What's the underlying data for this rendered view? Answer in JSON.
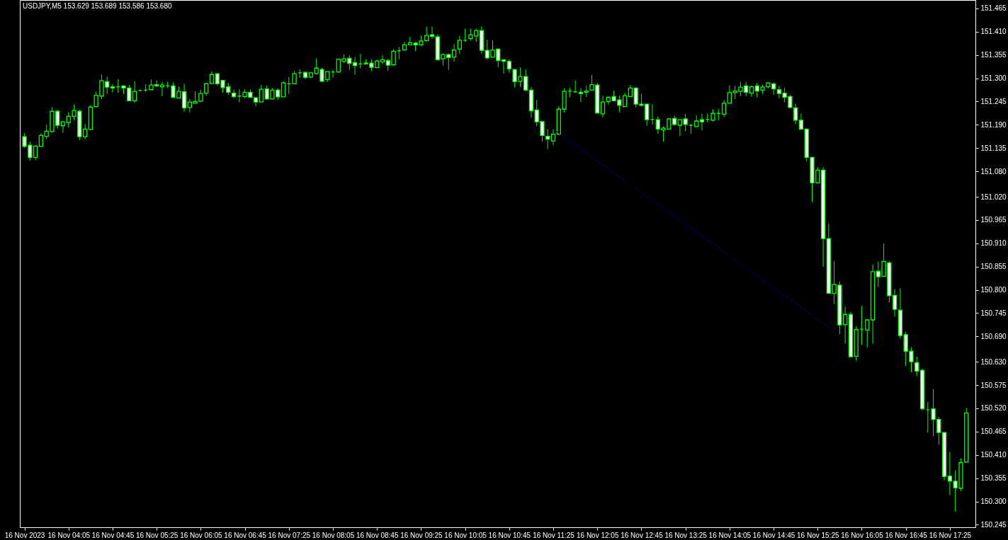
{
  "chart_data": {
    "type": "candlestick",
    "title": "USDJPY,M5  153.629 153.689 153.586 153.680",
    "color": "#00ff00",
    "x": [
      "2023-11-16T03:25",
      "2023-11-16T03:30",
      "2023-11-16T03:35",
      "2023-11-16T03:40",
      "2023-11-16T03:45",
      "2023-11-16T03:50",
      "2023-11-16T03:55",
      "2023-11-16T04:00",
      "2023-11-16T04:05",
      "2023-11-16T04:10",
      "2023-11-16T04:15",
      "2023-11-16T04:20",
      "2023-11-16T04:25",
      "2023-11-16T04:30",
      "2023-11-16T04:35",
      "2023-11-16T04:40",
      "2023-11-16T04:45",
      "2023-11-16T04:50",
      "2023-11-16T04:55",
      "2023-11-16T05:00",
      "2023-11-16T05:05",
      "2023-11-16T05:10",
      "2023-11-16T05:15",
      "2023-11-16T05:20",
      "2023-11-16T05:25",
      "2023-11-16T05:30",
      "2023-11-16T05:35",
      "2023-11-16T05:40",
      "2023-11-16T05:45",
      "2023-11-16T05:50",
      "2023-11-16T05:55",
      "2023-11-16T06:00",
      "2023-11-16T06:05",
      "2023-11-16T06:10",
      "2023-11-16T06:15",
      "2023-11-16T06:20",
      "2023-11-16T06:25",
      "2023-11-16T06:30",
      "2023-11-16T06:35",
      "2023-11-16T06:40",
      "2023-11-16T06:45",
      "2023-11-16T06:50",
      "2023-11-16T06:55",
      "2023-11-16T07:00",
      "2023-11-16T07:05",
      "2023-11-16T07:10",
      "2023-11-16T07:15",
      "2023-11-16T07:20",
      "2023-11-16T07:25",
      "2023-11-16T07:30",
      "2023-11-16T07:35",
      "2023-11-16T07:40",
      "2023-11-16T07:45",
      "2023-11-16T07:50",
      "2023-11-16T07:55",
      "2023-11-16T08:00",
      "2023-11-16T08:05",
      "2023-11-16T08:10",
      "2023-11-16T08:15",
      "2023-11-16T08:20",
      "2023-11-16T08:25",
      "2023-11-16T08:30",
      "2023-11-16T08:35",
      "2023-11-16T08:40",
      "2023-11-16T08:45",
      "2023-11-16T08:50",
      "2023-11-16T08:55",
      "2023-11-16T09:00",
      "2023-11-16T09:05",
      "2023-11-16T09:10",
      "2023-11-16T09:15",
      "2023-11-16T09:20",
      "2023-11-16T09:25",
      "2023-11-16T09:30",
      "2023-11-16T09:35",
      "2023-11-16T09:40",
      "2023-11-16T09:45",
      "2023-11-16T09:50",
      "2023-11-16T09:55",
      "2023-11-16T10:00",
      "2023-11-16T10:05",
      "2023-11-16T10:10",
      "2023-11-16T10:15",
      "2023-11-16T10:20",
      "2023-11-16T10:25",
      "2023-11-16T10:30",
      "2023-11-16T10:35",
      "2023-11-16T10:40",
      "2023-11-16T10:45",
      "2023-11-16T10:50",
      "2023-11-16T10:55",
      "2023-11-16T11:00",
      "2023-11-16T11:05",
      "2023-11-16T11:10",
      "2023-11-16T11:15",
      "2023-11-16T11:20",
      "2023-11-16T11:25",
      "2023-11-16T11:30",
      "2023-11-16T11:35",
      "2023-11-16T11:40",
      "2023-11-16T11:45",
      "2023-11-16T11:50",
      "2023-11-16T11:55",
      "2023-11-16T12:00",
      "2023-11-16T12:05",
      "2023-11-16T12:10",
      "2023-11-16T12:15",
      "2023-11-16T12:20",
      "2023-11-16T12:25",
      "2023-11-16T12:30",
      "2023-11-16T12:35",
      "2023-11-16T12:40",
      "2023-11-16T12:45",
      "2023-11-16T12:50",
      "2023-11-16T12:55",
      "2023-11-16T13:00",
      "2023-11-16T13:05",
      "2023-11-16T13:10",
      "2023-11-16T13:15",
      "2023-11-16T13:20",
      "2023-11-16T13:25",
      "2023-11-16T13:30",
      "2023-11-16T13:35",
      "2023-11-16T13:40",
      "2023-11-16T13:45",
      "2023-11-16T13:50",
      "2023-11-16T13:55",
      "2023-11-16T14:00",
      "2023-11-16T14:05",
      "2023-11-16T14:10",
      "2023-11-16T14:15",
      "2023-11-16T14:20",
      "2023-11-16T14:25",
      "2023-11-16T14:30",
      "2023-11-16T14:35",
      "2023-11-16T14:40",
      "2023-11-16T14:45",
      "2023-11-16T14:50",
      "2023-11-16T14:55",
      "2023-11-16T15:00",
      "2023-11-16T15:05",
      "2023-11-16T15:10",
      "2023-11-16T15:15",
      "2023-11-16T15:20",
      "2023-11-16T15:25",
      "2023-11-16T15:30",
      "2023-11-16T15:35",
      "2023-11-16T15:40",
      "2023-11-16T15:45",
      "2023-11-16T15:50",
      "2023-11-16T15:55",
      "2023-11-16T16:00",
      "2023-11-16T16:05",
      "2023-11-16T16:10",
      "2023-11-16T16:15",
      "2023-11-16T16:20",
      "2023-11-16T16:25",
      "2023-11-16T16:30",
      "2023-11-16T16:35",
      "2023-11-16T16:40",
      "2023-11-16T16:45",
      "2023-11-16T16:50",
      "2023-11-16T16:55",
      "2023-11-16T17:00",
      "2023-11-16T17:05",
      "2023-11-16T17:10",
      "2023-11-16T17:15",
      "2023-11-16T17:20",
      "2023-11-16T17:25",
      "2023-11-16T17:30",
      "2023-11-16T17:35",
      "2023-11-16T17:40"
    ],
    "ohlc": [
      [
        151.162,
        151.17,
        151.136,
        151.139
      ],
      [
        151.142,
        151.15,
        151.106,
        151.113
      ],
      [
        151.113,
        151.142,
        151.106,
        151.14
      ],
      [
        151.139,
        151.17,
        151.138,
        151.165
      ],
      [
        151.163,
        151.191,
        151.156,
        151.175
      ],
      [
        151.174,
        151.232,
        151.171,
        151.222
      ],
      [
        151.222,
        151.226,
        151.181,
        151.189
      ],
      [
        151.188,
        151.199,
        151.171,
        151.197
      ],
      [
        151.195,
        151.22,
        151.184,
        151.21
      ],
      [
        151.21,
        151.238,
        151.201,
        151.224
      ],
      [
        151.222,
        151.226,
        151.154,
        151.162
      ],
      [
        151.162,
        151.192,
        151.156,
        151.18
      ],
      [
        151.179,
        151.237,
        151.177,
        151.232
      ],
      [
        151.233,
        151.268,
        151.231,
        151.26
      ],
      [
        151.258,
        151.309,
        151.251,
        151.294
      ],
      [
        151.292,
        151.304,
        151.263,
        151.279
      ],
      [
        151.28,
        151.287,
        151.266,
        151.277
      ],
      [
        151.28,
        151.298,
        151.266,
        151.28
      ],
      [
        151.282,
        151.283,
        151.263,
        151.277
      ],
      [
        151.277,
        151.284,
        151.246,
        151.247
      ],
      [
        151.247,
        151.293,
        151.242,
        151.269
      ],
      [
        151.271,
        151.274,
        151.269,
        151.271
      ],
      [
        151.272,
        151.286,
        151.268,
        151.272
      ],
      [
        151.273,
        151.297,
        151.272,
        151.284
      ],
      [
        151.285,
        151.295,
        151.279,
        151.282
      ],
      [
        151.28,
        151.291,
        151.258,
        151.284
      ],
      [
        151.282,
        151.292,
        151.277,
        151.282
      ],
      [
        151.282,
        151.29,
        151.253,
        151.255
      ],
      [
        151.253,
        151.281,
        151.253,
        151.269
      ],
      [
        151.268,
        151.287,
        151.221,
        151.23
      ],
      [
        151.231,
        151.251,
        151.22,
        151.244
      ],
      [
        151.241,
        151.269,
        151.241,
        151.245
      ],
      [
        151.246,
        151.273,
        151.243,
        151.264
      ],
      [
        151.265,
        151.289,
        151.259,
        151.287
      ],
      [
        151.288,
        151.316,
        151.286,
        151.309
      ],
      [
        151.311,
        151.312,
        151.283,
        151.287
      ],
      [
        151.295,
        151.295,
        151.266,
        151.278
      ],
      [
        151.28,
        151.289,
        151.261,
        151.267
      ],
      [
        151.265,
        151.273,
        151.253,
        151.257
      ],
      [
        151.258,
        151.274,
        151.243,
        151.258
      ],
      [
        151.257,
        151.274,
        151.253,
        151.267
      ],
      [
        151.267,
        151.274,
        151.255,
        151.255
      ],
      [
        151.254,
        151.254,
        151.234,
        151.244
      ],
      [
        151.244,
        151.284,
        151.244,
        151.274
      ],
      [
        151.275,
        151.283,
        151.249,
        151.251
      ],
      [
        151.251,
        151.277,
        151.251,
        151.272
      ],
      [
        151.272,
        151.276,
        151.249,
        151.256
      ],
      [
        151.256,
        151.293,
        151.256,
        151.289
      ],
      [
        151.287,
        151.303,
        151.263,
        151.287
      ],
      [
        151.287,
        151.317,
        151.287,
        151.311
      ],
      [
        151.313,
        151.321,
        151.301,
        151.313
      ],
      [
        151.314,
        151.314,
        151.298,
        151.302
      ],
      [
        151.303,
        151.315,
        151.301,
        151.313
      ],
      [
        151.311,
        151.347,
        151.31,
        151.324
      ],
      [
        151.321,
        151.325,
        151.291,
        151.293
      ],
      [
        151.297,
        151.316,
        151.291,
        151.316
      ],
      [
        151.315,
        151.32,
        151.301,
        151.315
      ],
      [
        151.315,
        151.346,
        151.313,
        151.345
      ],
      [
        151.34,
        151.357,
        151.336,
        151.346
      ],
      [
        151.347,
        151.355,
        151.32,
        151.335
      ],
      [
        151.337,
        151.35,
        151.308,
        151.33
      ],
      [
        151.334,
        151.358,
        151.323,
        151.334
      ],
      [
        151.336,
        151.346,
        151.334,
        151.334
      ],
      [
        151.336,
        151.345,
        151.317,
        151.326
      ],
      [
        151.325,
        151.344,
        151.325,
        151.341
      ],
      [
        151.339,
        151.355,
        151.333,
        151.344
      ],
      [
        151.342,
        151.346,
        151.318,
        151.331
      ],
      [
        151.332,
        151.369,
        151.329,
        151.364
      ],
      [
        151.365,
        151.374,
        151.345,
        151.365
      ],
      [
        151.367,
        151.386,
        151.367,
        151.379
      ],
      [
        151.379,
        151.398,
        151.379,
        151.384
      ],
      [
        151.383,
        151.386,
        151.364,
        151.379
      ],
      [
        151.379,
        151.401,
        151.376,
        151.388
      ],
      [
        151.389,
        151.422,
        151.386,
        151.401
      ],
      [
        151.403,
        151.422,
        151.393,
        151.399
      ],
      [
        151.398,
        151.403,
        151.342,
        151.344
      ],
      [
        151.346,
        151.359,
        151.33,
        151.356
      ],
      [
        151.356,
        151.359,
        151.32,
        151.349
      ],
      [
        151.35,
        151.38,
        151.34,
        151.367
      ],
      [
        151.369,
        151.4,
        151.358,
        151.39
      ],
      [
        151.39,
        151.417,
        151.386,
        151.39
      ],
      [
        151.394,
        151.417,
        151.389,
        151.403
      ],
      [
        151.4,
        151.417,
        151.386,
        151.413
      ],
      [
        151.413,
        151.423,
        151.358,
        151.366
      ],
      [
        151.366,
        151.391,
        151.344,
        151.348
      ],
      [
        151.35,
        151.39,
        151.35,
        151.367
      ],
      [
        151.369,
        151.371,
        151.326,
        151.342
      ],
      [
        151.344,
        151.344,
        151.311,
        151.34
      ],
      [
        151.34,
        151.345,
        151.313,
        151.322
      ],
      [
        151.321,
        151.321,
        151.279,
        151.292
      ],
      [
        151.293,
        151.326,
        151.28,
        151.304
      ],
      [
        151.304,
        151.321,
        151.269,
        151.272
      ],
      [
        151.272,
        151.279,
        151.207,
        151.223
      ],
      [
        151.225,
        151.249,
        151.187,
        151.197
      ],
      [
        151.198,
        151.201,
        151.15,
        151.165
      ],
      [
        151.163,
        151.18,
        151.133,
        151.156
      ],
      [
        151.152,
        151.18,
        151.142,
        151.168
      ],
      [
        151.168,
        151.234,
        151.166,
        151.227
      ],
      [
        151.227,
        151.276,
        151.219,
        151.269
      ],
      [
        151.27,
        151.278,
        151.255,
        151.27
      ],
      [
        151.268,
        151.295,
        151.266,
        151.268
      ],
      [
        151.267,
        151.277,
        151.244,
        151.264
      ],
      [
        151.267,
        151.283,
        151.256,
        151.27
      ],
      [
        151.272,
        151.308,
        151.272,
        151.285
      ],
      [
        151.284,
        151.289,
        151.216,
        151.218
      ],
      [
        151.216,
        151.259,
        151.208,
        151.244
      ],
      [
        151.245,
        151.257,
        151.238,
        151.255
      ],
      [
        151.257,
        151.27,
        151.247,
        151.247
      ],
      [
        151.249,
        151.259,
        151.22,
        151.236
      ],
      [
        151.233,
        151.266,
        151.233,
        151.259
      ],
      [
        151.257,
        151.284,
        151.257,
        151.277
      ],
      [
        151.277,
        151.279,
        151.231,
        151.239
      ],
      [
        151.239,
        151.263,
        151.233,
        151.236
      ],
      [
        151.239,
        151.24,
        151.188,
        151.202
      ],
      [
        151.203,
        151.239,
        151.191,
        151.203
      ],
      [
        151.202,
        151.21,
        151.169,
        151.18
      ],
      [
        151.178,
        151.186,
        151.15,
        151.182
      ],
      [
        151.18,
        151.205,
        151.18,
        151.204
      ],
      [
        151.205,
        151.212,
        151.188,
        151.191
      ],
      [
        151.189,
        151.203,
        151.163,
        151.202
      ],
      [
        151.204,
        151.216,
        151.174,
        151.191
      ],
      [
        151.189,
        151.192,
        151.169,
        151.189
      ],
      [
        151.186,
        151.212,
        151.184,
        151.199
      ],
      [
        151.202,
        151.216,
        151.177,
        151.197
      ],
      [
        151.203,
        151.216,
        151.196,
        151.203
      ],
      [
        151.201,
        151.227,
        151.198,
        151.217
      ],
      [
        151.217,
        151.227,
        151.201,
        151.217
      ],
      [
        151.215,
        151.248,
        151.209,
        151.241
      ],
      [
        151.241,
        151.283,
        151.241,
        151.266
      ],
      [
        151.266,
        151.282,
        151.251,
        151.27
      ],
      [
        151.269,
        151.291,
        151.258,
        151.279
      ],
      [
        151.282,
        151.291,
        151.258,
        151.267
      ],
      [
        151.265,
        151.283,
        151.256,
        151.28
      ],
      [
        151.282,
        151.289,
        151.255,
        151.27
      ],
      [
        151.272,
        151.285,
        151.263,
        151.279
      ],
      [
        151.28,
        151.291,
        151.276,
        151.289
      ],
      [
        151.287,
        151.29,
        151.261,
        151.275
      ],
      [
        151.273,
        151.282,
        151.253,
        151.264
      ],
      [
        151.265,
        151.278,
        151.243,
        151.255
      ],
      [
        151.257,
        151.261,
        151.23,
        151.231
      ],
      [
        151.23,
        151.24,
        151.192,
        151.201
      ],
      [
        151.201,
        151.216,
        151.178,
        151.18
      ],
      [
        151.18,
        151.181,
        151.104,
        151.113
      ],
      [
        151.113,
        151.113,
        151.008,
        151.053
      ],
      [
        151.053,
        151.09,
        151.052,
        151.083
      ],
      [
        151.083,
        151.09,
        150.854,
        150.921
      ],
      [
        150.921,
        150.957,
        150.792,
        150.792
      ],
      [
        150.792,
        150.868,
        150.767,
        150.813
      ],
      [
        150.811,
        150.82,
        150.695,
        150.717
      ],
      [
        150.718,
        150.76,
        150.673,
        150.742
      ],
      [
        150.742,
        150.748,
        150.642,
        150.642
      ],
      [
        150.643,
        150.714,
        150.633,
        150.706
      ],
      [
        150.707,
        150.762,
        150.67,
        150.707
      ],
      [
        150.705,
        150.731,
        150.664,
        150.729
      ],
      [
        150.729,
        150.86,
        150.673,
        150.843
      ],
      [
        150.844,
        150.867,
        150.807,
        150.831
      ],
      [
        150.832,
        150.91,
        150.832,
        150.867
      ],
      [
        150.864,
        150.868,
        150.77,
        150.786
      ],
      [
        150.787,
        150.802,
        150.737,
        150.754
      ],
      [
        150.752,
        150.804,
        150.685,
        150.692
      ],
      [
        150.694,
        150.7,
        150.62,
        150.655
      ],
      [
        150.655,
        150.664,
        150.605,
        150.63
      ],
      [
        150.628,
        150.642,
        150.596,
        150.608
      ],
      [
        150.61,
        150.614,
        150.515,
        150.519
      ],
      [
        150.517,
        150.535,
        150.463,
        150.517
      ],
      [
        150.519,
        150.565,
        150.454,
        150.494
      ],
      [
        150.494,
        150.5,
        150.434,
        150.463
      ],
      [
        150.463,
        150.463,
        150.35,
        150.359
      ],
      [
        150.36,
        150.417,
        150.315,
        150.348
      ],
      [
        150.348,
        150.373,
        150.276,
        150.332
      ],
      [
        150.331,
        150.402,
        150.325,
        150.392
      ],
      [
        150.393,
        150.521,
        150.392,
        150.509
      ]
    ],
    "series": [
      {
        "type": "line",
        "x": [
          "2023-11-16T11:12",
          "2023-11-16T15:51"
        ],
        "values": [
          151.204,
          150.682
        ],
        "color": "#0000ff",
        "line_style": "dotted"
      }
    ],
    "xlim": [
      "2023-11-16T03:24",
      "2023-11-16T17:45"
    ],
    "xticks": [
      {
        "value": "2023-11-16T03:25",
        "label": "16 Nov 2023"
      },
      {
        "value": "2023-11-16T04:05",
        "label": "16 Nov 04:05"
      },
      {
        "value": "2023-11-16T04:45",
        "label": "16 Nov 04:45"
      },
      {
        "value": "2023-11-16T05:25",
        "label": "16 Nov 05:25"
      },
      {
        "value": "2023-11-16T06:05",
        "label": "16 Nov 06:05"
      },
      {
        "value": "2023-11-16T06:45",
        "label": "16 Nov 06:45"
      },
      {
        "value": "2023-11-16T07:25",
        "label": "16 Nov 07:25"
      },
      {
        "value": "2023-11-16T08:05",
        "label": "16 Nov 08:05"
      },
      {
        "value": "2023-11-16T08:45",
        "label": "16 Nov 08:45"
      },
      {
        "value": "2023-11-16T09:25",
        "label": "16 Nov 09:25"
      },
      {
        "value": "2023-11-16T10:05",
        "label": "16 Nov 10:05"
      },
      {
        "value": "2023-11-16T10:45",
        "label": "16 Nov 10:45"
      },
      {
        "value": "2023-11-16T11:25",
        "label": "16 Nov 11:25"
      },
      {
        "value": "2023-11-16T12:05",
        "label": "16 Nov 12:05"
      },
      {
        "value": "2023-11-16T12:45",
        "label": "16 Nov 12:45"
      },
      {
        "value": "2023-11-16T13:25",
        "label": "16 Nov 13:25"
      },
      {
        "value": "2023-11-16T14:05",
        "label": "16 Nov 14:05"
      },
      {
        "value": "2023-11-16T14:45",
        "label": "16 Nov 14:45"
      },
      {
        "value": "2023-11-16T15:25",
        "label": "16 Nov 15:25"
      },
      {
        "value": "2023-11-16T16:05",
        "label": "16 Nov 16:05"
      },
      {
        "value": "2023-11-16T16:45",
        "label": "16 Nov 16:45"
      },
      {
        "value": "2023-11-16T17:25",
        "label": "16 Nov 17:25"
      }
    ],
    "ylim": [
      150.239,
      151.485
    ],
    "yticks": [
      {
        "value": 150.245,
        "label": "150.245"
      },
      {
        "value": 150.3,
        "label": "150.300"
      },
      {
        "value": 150.355,
        "label": "150.355"
      },
      {
        "value": 150.41,
        "label": "150.410"
      },
      {
        "value": 150.465,
        "label": "150.465"
      },
      {
        "value": 150.52,
        "label": "150.520"
      },
      {
        "value": 150.575,
        "label": "150.575"
      },
      {
        "value": 150.63,
        "label": "150.630"
      },
      {
        "value": 150.69,
        "label": "150.690"
      },
      {
        "value": 150.745,
        "label": "150.745"
      },
      {
        "value": 150.8,
        "label": "150.800"
      },
      {
        "value": 150.855,
        "label": "150.855"
      },
      {
        "value": 150.91,
        "label": "150.910"
      },
      {
        "value": 150.965,
        "label": "150.965"
      },
      {
        "value": 151.02,
        "label": "151.020"
      },
      {
        "value": 151.08,
        "label": "151.080"
      },
      {
        "value": 151.135,
        "label": "151.135"
      },
      {
        "value": 151.19,
        "label": "151.190"
      },
      {
        "value": 151.245,
        "label": "151.245"
      },
      {
        "value": 151.3,
        "label": "151.300"
      },
      {
        "value": 151.355,
        "label": "151.355"
      },
      {
        "value": 151.41,
        "label": "151.410"
      },
      {
        "value": 151.465,
        "label": "151.465"
      }
    ],
    "grid": false,
    "legend": false
  }
}
